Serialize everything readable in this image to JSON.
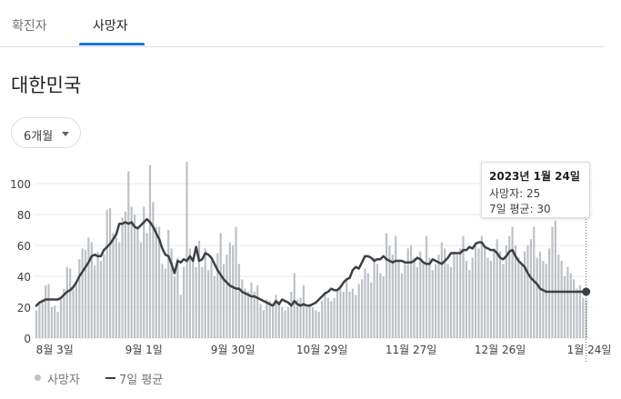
{
  "tabs": [
    {
      "label": "확진자",
      "selected": false
    },
    {
      "label": "사망자",
      "selected": true
    }
  ],
  "region_title": "대한민국",
  "range_selector": {
    "label": "6개월",
    "icon": "caret-down-icon"
  },
  "tooltip": {
    "date": "2023년 1월 24일",
    "deaths_line": "사망자: 25",
    "avg_line": "7일 평균: 30"
  },
  "legend": {
    "deaths": "사망자",
    "avg": "7일 평균"
  },
  "colors": {
    "bars": "#bdc1c6",
    "line": "#3c4043",
    "accent": "#1a73e8"
  },
  "chart_data": {
    "type": "bar",
    "title": "",
    "xlabel": "",
    "ylabel": "",
    "ylim": [
      0,
      110
    ],
    "y_ticks": [
      0,
      20,
      40,
      60,
      80,
      100
    ],
    "x_ticks": [
      {
        "day": 6,
        "label": "8월 3일"
      },
      {
        "day": 35,
        "label": "9월 1일"
      },
      {
        "day": 64,
        "label": "9월 30일"
      },
      {
        "day": 93,
        "label": "10월 29일"
      },
      {
        "day": 122,
        "label": "11월 27일"
      },
      {
        "day": 151,
        "label": "12월 26일"
      },
      {
        "day": 180,
        "label": "1월 24일"
      }
    ],
    "grid": true,
    "legend_position": "bottom-left",
    "series": [
      {
        "name": "사망자",
        "type": "bar",
        "values": [
          18,
          22,
          25,
          34,
          35,
          20,
          21,
          17,
          26,
          32,
          46,
          45,
          32,
          36,
          51,
          58,
          57,
          65,
          62,
          47,
          56,
          50,
          54,
          83,
          84,
          68,
          65,
          62,
          78,
          82,
          108,
          85,
          80,
          72,
          62,
          85,
          68,
          112,
          88,
          72,
          72,
          48,
          45,
          70,
          58,
          40,
          52,
          28,
          46,
          114,
          58,
          52,
          46,
          63,
          46,
          58,
          44,
          50,
          40,
          55,
          68,
          48,
          54,
          62,
          60,
          72,
          48,
          38,
          32,
          30,
          36,
          30,
          34,
          22,
          18,
          25,
          24,
          20,
          28,
          24,
          20,
          18,
          20,
          30,
          42,
          25,
          26,
          34,
          20,
          22,
          20,
          18,
          17,
          24,
          30,
          26,
          24,
          26,
          32,
          34,
          30,
          38,
          30,
          32,
          28,
          35,
          38,
          45,
          42,
          36,
          52,
          48,
          42,
          40,
          68,
          60,
          54,
          66,
          50,
          42,
          48,
          58,
          60,
          52,
          46,
          56,
          50,
          66,
          52,
          44,
          48,
          54,
          62,
          58,
          48,
          46,
          56,
          54,
          58,
          66,
          50,
          44,
          52,
          62,
          58,
          66,
          60,
          52,
          50,
          58,
          64,
          56,
          48,
          60,
          66,
          72,
          60,
          52,
          48,
          56,
          60,
          64,
          72,
          52,
          56,
          50,
          48,
          58,
          72,
          76,
          54,
          50,
          40,
          46,
          42,
          38,
          32,
          34,
          26,
          25
        ]
      },
      {
        "name": "7일 평균",
        "type": "line",
        "values": [
          21,
          23,
          24,
          25,
          25,
          25,
          25,
          25,
          26,
          28,
          30,
          31,
          33,
          36,
          40,
          43,
          46,
          49,
          53,
          54,
          53,
          53,
          57,
          59,
          61,
          64,
          67,
          74,
          74,
          75,
          74,
          75,
          72,
          71,
          73,
          75,
          77,
          75,
          72,
          68,
          64,
          58,
          54,
          53,
          48,
          42,
          50,
          49,
          51,
          50,
          53,
          50,
          59,
          50,
          51,
          55,
          54,
          52,
          48,
          44,
          41,
          38,
          36,
          34,
          33,
          32,
          32,
          30,
          29,
          28,
          27,
          27,
          26,
          25,
          24,
          23,
          22,
          21,
          24,
          22,
          25,
          24,
          23,
          21,
          24,
          22,
          21,
          22,
          21,
          21,
          22,
          23,
          25,
          27,
          29,
          30,
          32,
          31,
          31,
          33,
          36,
          38,
          39,
          44,
          46,
          45,
          49,
          53,
          53,
          52,
          50,
          51,
          51,
          53,
          51,
          50,
          49,
          50,
          50,
          50,
          49,
          49,
          49,
          50,
          52,
          51,
          49,
          48,
          48,
          51,
          50,
          49,
          48,
          50,
          52,
          55,
          55,
          55,
          55,
          57,
          57,
          59,
          58,
          61,
          62,
          62,
          59,
          58,
          57,
          57,
          55,
          52,
          51,
          53,
          56,
          57,
          53,
          50,
          48,
          46,
          42,
          39,
          37,
          35,
          32,
          31,
          30,
          30,
          30,
          30,
          30,
          30,
          30,
          30,
          30,
          30,
          30,
          30,
          30,
          30,
          30
        ]
      }
    ]
  }
}
